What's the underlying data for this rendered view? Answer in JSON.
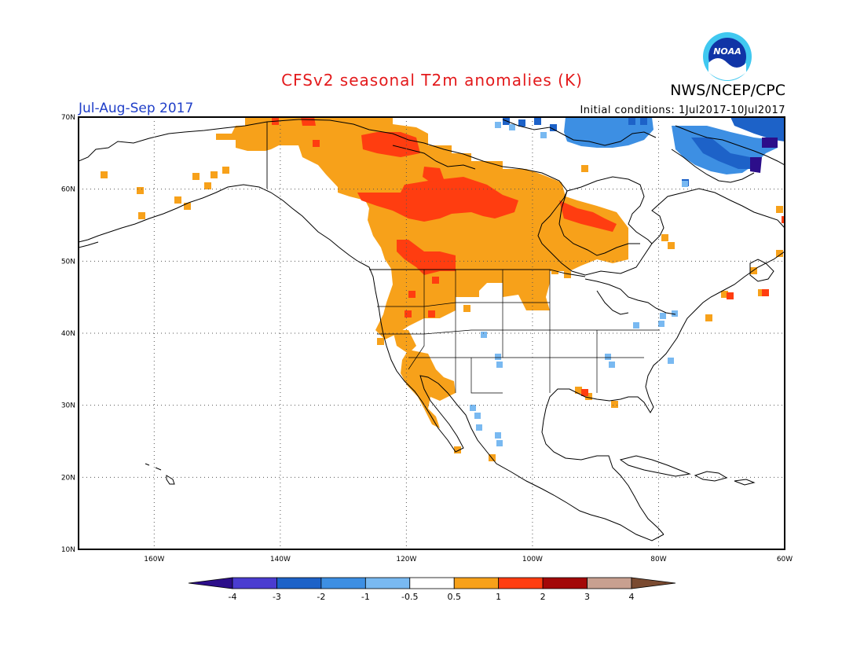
{
  "title": "CFSv2 seasonal T2m anomalies (K)",
  "agency": "NWS/NCEP/CPC",
  "period": "Jul-Aug-Sep 2017",
  "initial_conditions": "Initial conditions: 1Jul2017-10Jul2017",
  "logo_text": "NOAA",
  "map": {
    "lon_range": [
      -172,
      -60
    ],
    "lat_range": [
      10,
      70
    ],
    "lat_ticks": [
      {
        "value": 70,
        "label": "70N"
      },
      {
        "value": 60,
        "label": "60N"
      },
      {
        "value": 50,
        "label": "50N"
      },
      {
        "value": 40,
        "label": "40N"
      },
      {
        "value": 30,
        "label": "30N"
      },
      {
        "value": 20,
        "label": "20N"
      },
      {
        "value": 10,
        "label": "10N"
      }
    ],
    "lon_ticks": [
      {
        "value": -160,
        "label": "160W"
      },
      {
        "value": -140,
        "label": "140W"
      },
      {
        "value": -120,
        "label": "120W"
      },
      {
        "value": -100,
        "label": "100W"
      },
      {
        "value": -80,
        "label": "80W"
      },
      {
        "value": -60,
        "label": "60W"
      }
    ]
  },
  "colorbar": {
    "labels": [
      "-4",
      "-3",
      "-2",
      "-1",
      "-0.5",
      "0.5",
      "1",
      "2",
      "3",
      "4"
    ],
    "colors": [
      "#2c0e8a",
      "#4a3cd0",
      "#1d62c8",
      "#3d8fe3",
      "#79b9f1",
      "#ffffff",
      "#f7a11a",
      "#ff3d10",
      "#a30808",
      "#c8a090",
      "#7a4a30"
    ]
  },
  "colors": {
    "warm1": "#f7a11a",
    "warm2": "#ff3d10",
    "cool1": "#79b9f1",
    "cool2": "#3d8fe3",
    "cool3": "#1d62c8",
    "cool4": "#2c0e8a"
  }
}
